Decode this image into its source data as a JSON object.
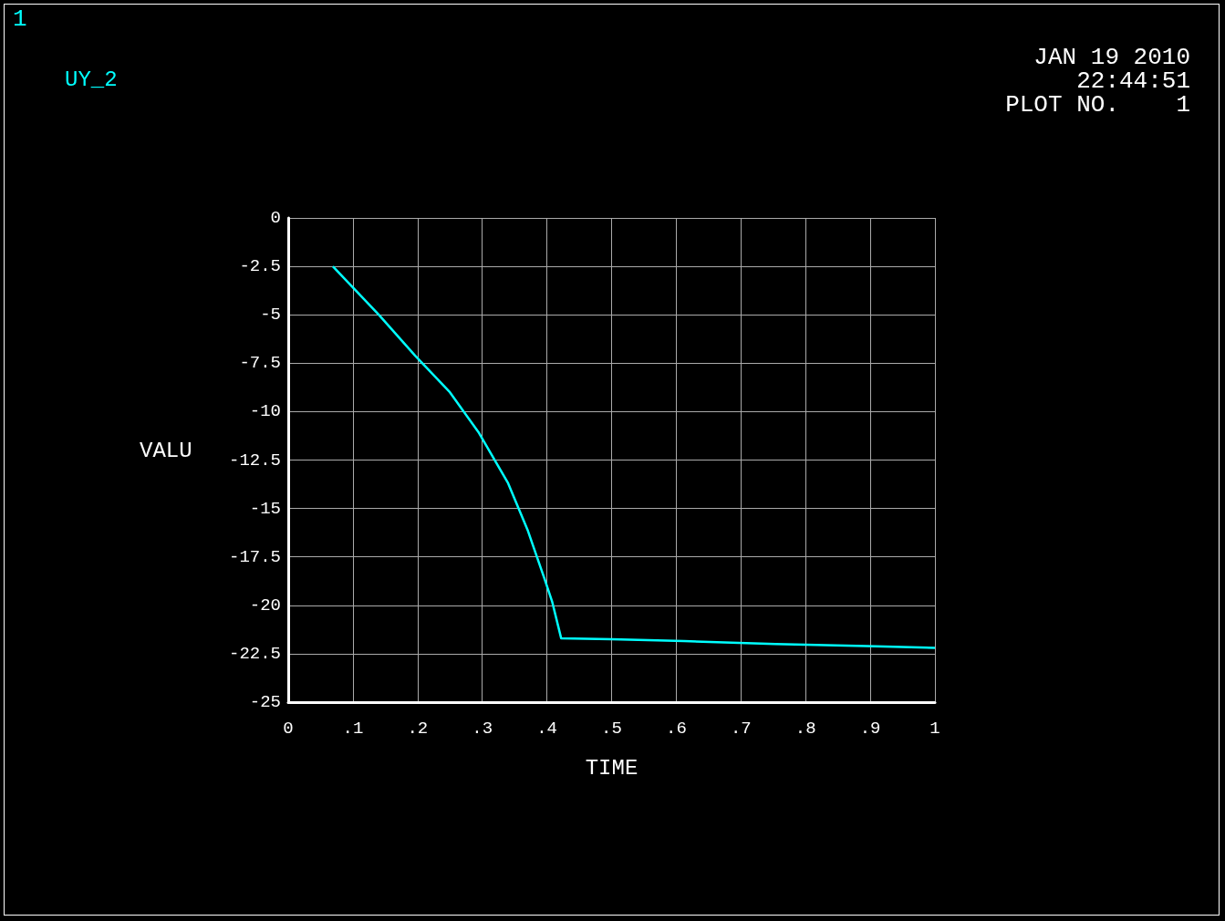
{
  "chart_data": {
    "type": "line",
    "xlabel": "TIME",
    "ylabel": "VALU",
    "annotations": [
      "1",
      "JAN 19 2010",
      "22:44:51",
      "PLOT NO.    1"
    ],
    "series": [
      {
        "name": "UY_2",
        "color": "#00ffff",
        "x": [
          0.069,
          0.14,
          0.196,
          0.25,
          0.295,
          0.34,
          0.37,
          0.396,
          0.408,
          0.422,
          0.5,
          0.612,
          0.753,
          0.894,
          1.0
        ],
        "values": [
          -2.5,
          -5.0,
          -7.1,
          -9.0,
          -11.1,
          -13.7,
          -16.1,
          -18.6,
          -19.8,
          -21.7,
          -21.75,
          -21.85,
          -22.0,
          -22.1,
          -22.2
        ]
      }
    ],
    "xlim": [
      0,
      1
    ],
    "xticks": [
      0,
      {
        "value": 0.1,
        "label": ".1"
      },
      {
        "value": 0.2,
        "label": ".2"
      },
      {
        "value": 0.3,
        "label": ".3"
      },
      {
        "value": 0.4,
        "label": ".4"
      },
      {
        "value": 0.5,
        "label": ".5"
      },
      {
        "value": 0.6,
        "label": ".6"
      },
      {
        "value": 0.7,
        "label": ".7"
      },
      {
        "value": 0.8,
        "label": ".8"
      },
      {
        "value": 0.9,
        "label": ".9"
      },
      1
    ],
    "ylim": [
      -25,
      0
    ],
    "yticks": [
      -25,
      -22.5,
      -20,
      -17.5,
      -15,
      -12.5,
      -10,
      -7.5,
      -5,
      -2.5,
      0
    ],
    "grid": true,
    "legend": "top left",
    "marker": "none",
    "line_style": "solid"
  }
}
